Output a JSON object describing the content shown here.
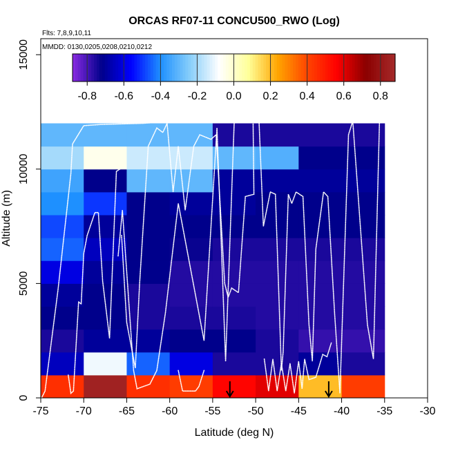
{
  "chart_data": {
    "type": "heatmap",
    "title": "ORCAS RF07-11 CONCU500_RWO (Log)",
    "flights_note": "Flts: 7,8,9,10,11",
    "dates_note": "MMDD: 0130,0205,0208,0210,0212",
    "xlabel": "Latitude (deg N)",
    "ylabel": "Altitude (m)",
    "xlim": [
      -75,
      -30
    ],
    "ylim": [
      0,
      15700
    ],
    "x_ticks": [
      -75,
      -70,
      -65,
      -60,
      -55,
      -50,
      -45,
      -40,
      -35,
      -30
    ],
    "x_tick_labels": [
      "-75",
      "-70",
      "-65",
      "-60",
      "-55",
      "-50",
      "-45",
      "-40",
      "-35",
      "-30"
    ],
    "y_ticks": [
      0,
      5000,
      10000,
      15000
    ],
    "y_tick_labels": [
      "0",
      "5000",
      "10000",
      "15000"
    ],
    "colorbar": {
      "range": [
        -0.88,
        0.88
      ],
      "ticks": [
        -0.8,
        -0.6,
        -0.4,
        -0.2,
        0.0,
        0.2,
        0.4,
        0.6,
        0.8
      ],
      "tick_labels": [
        "-0.8",
        "-0.6",
        "-0.4",
        "-0.2",
        "0.0",
        "0.2",
        "0.4",
        "0.6",
        "0.8"
      ],
      "stops": [
        "#8a2be2",
        "#00008b",
        "#0000ff",
        "#1e90ff",
        "#87cefa",
        "#ffffff",
        "#ffff99",
        "#ffa500",
        "#ff4500",
        "#ff0000",
        "#8b0000",
        "#a52a2a"
      ]
    },
    "lat_bins": [
      -75,
      -70,
      -65,
      -60,
      -55,
      -50,
      -45,
      -40,
      -35
    ],
    "alt_bins": [
      0,
      1000,
      2000,
      3000,
      4000,
      5000,
      6000,
      7000,
      8000,
      9000,
      10000,
      11000,
      12000
    ],
    "values": [
      [
        0.45,
        0.85,
        0.45,
        0.42,
        0.55,
        0.6,
        0.2,
        0.42
      ],
      [
        -0.65,
        -0.1,
        -0.45,
        -0.6,
        -0.75,
        -0.75,
        -0.7,
        -0.75
      ],
      [
        -0.75,
        -0.7,
        -0.7,
        -0.72,
        -0.72,
        -0.75,
        -0.78,
        -0.78
      ],
      [
        -0.72,
        -0.72,
        -0.75,
        -0.75,
        -0.75,
        -0.76,
        -0.76,
        -0.76
      ],
      [
        -0.7,
        -0.72,
        -0.75,
        -0.76,
        -0.76,
        -0.76,
        -0.76,
        -0.76
      ],
      [
        -0.6,
        -0.7,
        -0.72,
        -0.76,
        -0.76,
        -0.76,
        -0.76,
        -0.76
      ],
      [
        -0.45,
        -0.65,
        -0.72,
        -0.73,
        -0.75,
        -0.75,
        -0.75,
        -0.75
      ],
      [
        -0.48,
        -0.7,
        -0.72,
        -0.72,
        -0.72,
        -0.72,
        -0.72,
        -0.72
      ],
      [
        -0.4,
        -0.5,
        -0.72,
        -0.7,
        -0.7,
        -0.72,
        -0.72,
        -0.72
      ],
      [
        -0.35,
        -0.72,
        -0.3,
        -0.3,
        -0.7,
        -0.7,
        -0.7,
        -0.7
      ],
      [
        -0.2,
        -0.05,
        -0.15,
        -0.15,
        -0.3,
        -0.32,
        -0.72,
        -0.72
      ],
      [
        -0.3,
        -0.3,
        -0.3,
        -0.3,
        -0.75,
        -0.75,
        -0.75,
        -0.75
      ]
    ],
    "arrow_latitudes": [
      -53,
      -41.5
    ],
    "flight_track_note": "white flight tracks (Altitude vs Latitude)",
    "flight_tracks": [
      [
        [
          -74.9,
          0
        ],
        [
          -74.5,
          300
        ],
        [
          -73,
          4700
        ],
        [
          -71.5,
          9800
        ],
        [
          -71.3,
          11100
        ],
        [
          -70,
          11900
        ],
        [
          -68,
          11950
        ],
        [
          -63,
          12000
        ],
        [
          -58,
          12150
        ],
        [
          -55,
          12300
        ]
      ],
      [
        [
          -71.8,
          1000
        ],
        [
          -71.5,
          200
        ],
        [
          -71.2,
          300
        ],
        [
          -70.6,
          4200
        ],
        [
          -70.3,
          4100
        ],
        [
          -70,
          6300
        ],
        [
          -69.6,
          7100
        ],
        [
          -68.7,
          8100
        ],
        [
          -68.3,
          8100
        ],
        [
          -67.8,
          5100
        ],
        [
          -67,
          2600
        ],
        [
          -66.2,
          9900
        ],
        [
          -65.8,
          10000
        ]
      ],
      [
        [
          -65.6,
          7100
        ],
        [
          -65,
          3300
        ],
        [
          -64,
          1300
        ],
        [
          -63.5,
          5000
        ],
        [
          -62.5,
          11000
        ],
        [
          -61.5,
          11800
        ],
        [
          -60.8,
          11600
        ],
        [
          -60.3,
          12000
        ],
        [
          -59.6,
          9000
        ],
        [
          -59,
          11000
        ],
        [
          -58.2,
          8200
        ],
        [
          -57.2,
          11000
        ],
        [
          -56.5,
          11500
        ],
        [
          -55.2,
          11300
        ],
        [
          -54.6,
          11500
        ],
        [
          -53.6,
          5000
        ],
        [
          -53.2,
          4400
        ],
        [
          -52.8,
          4800
        ],
        [
          -52,
          4600
        ],
        [
          -51.2,
          8800
        ],
        [
          -50.2,
          8900
        ],
        [
          -50.3,
          12000
        ]
      ],
      [
        [
          -66,
          6200
        ],
        [
          -65.5,
          8200
        ],
        [
          -64.2,
          1200
        ],
        [
          -63.8,
          400
        ],
        [
          -62.3,
          600
        ],
        [
          -61.5,
          1200
        ],
        [
          -60.5,
          3700
        ],
        [
          -59,
          8500
        ],
        [
          -56,
          2500
        ],
        [
          -54.5,
          11800
        ],
        [
          -53.5,
          1600
        ],
        [
          -52.5,
          12000
        ]
      ],
      [
        [
          -49.6,
          12000
        ],
        [
          -49.1,
          7500
        ],
        [
          -48.3,
          9000
        ],
        [
          -47.7,
          8900
        ],
        [
          -47,
          1200
        ],
        [
          -46.8,
          2000
        ],
        [
          -46.2,
          8900
        ],
        [
          -45.8,
          8500
        ],
        [
          -45.3,
          9000
        ],
        [
          -44.5,
          8800
        ],
        [
          -43.8,
          3200
        ],
        [
          -43.4,
          1600
        ],
        [
          -43,
          6500
        ],
        [
          -42.1,
          9000
        ],
        [
          -41.6,
          8800
        ],
        [
          -40.8,
          3600
        ],
        [
          -40.2,
          200
        ],
        [
          -39.2,
          11500
        ],
        [
          -38.7,
          12100
        ],
        [
          -37,
          3200
        ],
        [
          -36.3,
          1700
        ],
        [
          -35.6,
          12000
        ]
      ],
      [
        [
          -49,
          1700
        ],
        [
          -48.5,
          300
        ],
        [
          -48,
          1700
        ],
        [
          -47.5,
          300
        ],
        [
          -47,
          1500
        ],
        [
          -46.5,
          300
        ],
        [
          -46,
          1500
        ],
        [
          -45.5,
          200
        ],
        [
          -45,
          1600
        ],
        [
          -44.6,
          400
        ],
        [
          -44.3,
          1700
        ],
        [
          -43.8,
          800
        ],
        [
          -43,
          900
        ],
        [
          -42.2,
          1900
        ],
        [
          -41.7,
          1800
        ],
        [
          -41.2,
          2400
        ]
      ],
      [
        [
          -59,
          1200
        ],
        [
          -58.5,
          300
        ],
        [
          -57,
          300
        ],
        [
          -56.6,
          500
        ],
        [
          -56,
          1200
        ]
      ]
    ]
  }
}
